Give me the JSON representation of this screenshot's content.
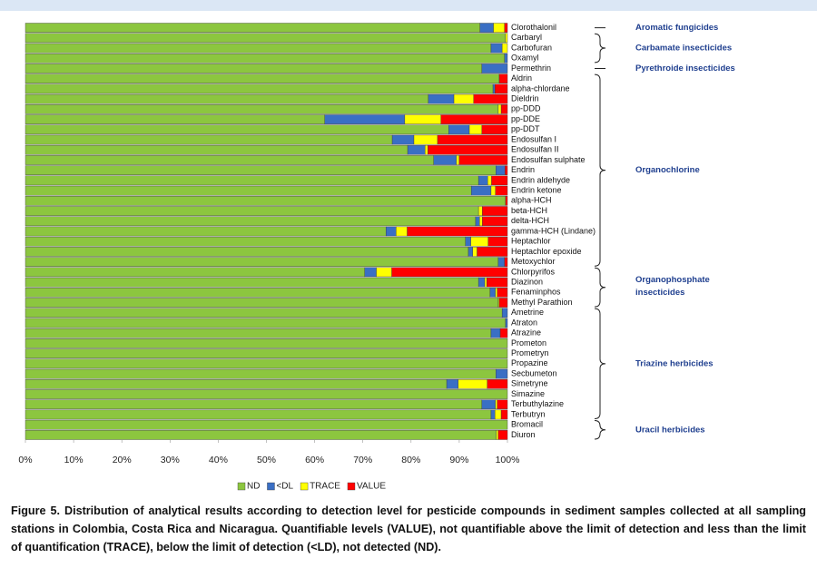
{
  "chart_data": {
    "type": "stacked-bar-horizontal",
    "categories": [
      "Clorothalonil",
      "Carbaryl",
      "Carbofuran",
      "Oxamyl",
      "Permethrin",
      "Aldrin",
      "alpha-chlordane",
      "Dieldrin",
      "pp-DDD",
      "pp-DDE",
      "pp-DDT",
      "Endosulfan I",
      "Endosulfan II",
      "Endosulfan sulphate",
      "Endrin",
      "Endrin aldehyde",
      "Endrin ketone",
      "alpha-HCH",
      "beta-HCH",
      "delta-HCH",
      "gamma-HCH (Lindane)",
      "Heptachlor",
      "Heptachlor epoxide",
      "Metoxychlor",
      "Chlorpyrifos",
      "Diazinon",
      "Fenaminphos",
      "Methyl Parathion",
      "Ametrine",
      "Atraton",
      "Atrazine",
      "Prometon",
      "Prometryn",
      "Propazine",
      "Secbumeton",
      "Simetryne",
      "Simazine",
      "Terbuthylazine",
      "Terbutryn",
      "Bromacil",
      "Diuron"
    ],
    "series": [
      {
        "name": "ND",
        "color": "#8cc63f",
        "values": [
          94.3,
          99.6,
          96.6,
          99.4,
          94.7,
          98.3,
          97,
          83.6,
          98.1,
          62.1,
          87.8,
          76.1,
          79.3,
          84.7,
          97.6,
          94.0,
          92.5,
          99.6,
          94.0,
          93.4,
          74.8,
          91.3,
          91.9,
          98.1,
          70.4,
          94.0,
          96.4,
          98.1,
          98.9,
          99.6,
          96.6,
          100,
          100,
          100,
          97.6,
          87.4,
          100,
          94.7,
          96.6,
          100,
          97.7
        ]
      },
      {
        "name": "<DL",
        "color": "#3a6fc4",
        "values": [
          2.8,
          0,
          2.3,
          0.6,
          5.3,
          0,
          0.4,
          5.3,
          0,
          16.6,
          4.3,
          4.5,
          3.6,
          4.7,
          1.9,
          1.9,
          4.1,
          0,
          0,
          0.8,
          2.1,
          1.1,
          0.9,
          1.3,
          2.4,
          1.3,
          1.1,
          0,
          1.1,
          0.4,
          1.9,
          0,
          0,
          0,
          2.4,
          2.4,
          0,
          2.8,
          0.8,
          0,
          0
        ]
      },
      {
        "name": "TRACE",
        "color": "#ffff00",
        "values": [
          2.3,
          0.4,
          1.1,
          0,
          0,
          0,
          0,
          4.1,
          0.6,
          7.5,
          2.6,
          4.9,
          0.6,
          0.6,
          0,
          0.8,
          0.9,
          0,
          0.8,
          0.6,
          2.3,
          3.6,
          0.9,
          0,
          3.2,
          0.4,
          0.4,
          0.2,
          0,
          0,
          0,
          0,
          0,
          0,
          0,
          6.0,
          0,
          0.4,
          1.3,
          0,
          0.4
        ]
      },
      {
        "name": "VALUE",
        "color": "#ff0000",
        "values": [
          0.6,
          0,
          0,
          0,
          0,
          1.7,
          2.6,
          7.0,
          1.3,
          13.8,
          5.3,
          14.5,
          16.5,
          10.0,
          0.5,
          3.3,
          2.5,
          0.4,
          5.2,
          5.2,
          20.8,
          4.0,
          6.3,
          0.6,
          24.0,
          4.3,
          2.1,
          1.7,
          0,
          0,
          1.5,
          0,
          0,
          0,
          0,
          4.2,
          0,
          2.1,
          1.3,
          0,
          1.9
        ]
      }
    ],
    "xlim": [
      0,
      100
    ],
    "xticks": [
      {
        "value": 0,
        "label": "0%"
      },
      {
        "value": 10,
        "label": "10%"
      },
      {
        "value": 20,
        "label": "20%"
      },
      {
        "value": 30,
        "label": "30%"
      },
      {
        "value": 40,
        "label": "40%"
      },
      {
        "value": 50,
        "label": "50%"
      },
      {
        "value": 60,
        "label": "60%"
      },
      {
        "value": 70,
        "label": "70%"
      },
      {
        "value": 80,
        "label": "80%"
      },
      {
        "value": 90,
        "label": "90%"
      },
      {
        "value": 100,
        "label": "100%"
      }
    ],
    "groups": [
      "Aromatic fungicides",
      "Carbamate insecticides",
      "Pyrethroide insecticides",
      "Organochlorine",
      "Organophosphate insecticides",
      "Triazine herbicides",
      "Uracil herbicides"
    ],
    "legend": "bottom",
    "caption": "Figure 5. Distribution of analytical results according to detection level for pesticide compounds in sediment samples collected at all sampling stations in Colombia, Costa Rica and Nicaragua. Quantifiable levels (VALUE), not quantifiable above the limit of detection and less than the limit of quantification (TRACE), below the limit of detection (<LD), not detected (ND)."
  }
}
